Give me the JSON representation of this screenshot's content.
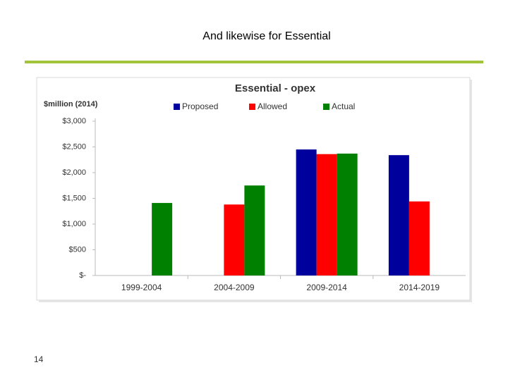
{
  "slide_title": "And likewise for Essential",
  "page_number": "14",
  "chart_data": {
    "type": "bar",
    "title": "Essential  - opex",
    "y_label": "$million (2014)",
    "categories": [
      "1999-2004",
      "2004-2009",
      "2009-2014",
      "2014-2019"
    ],
    "series": [
      {
        "name": "Proposed",
        "color": "#00009c",
        "values": [
          null,
          null,
          2450,
          2340
        ]
      },
      {
        "name": "Allowed",
        "color": "#ff0000",
        "values": [
          null,
          1380,
          2360,
          1440
        ]
      },
      {
        "name": "Actual",
        "color": "#008000",
        "values": [
          1410,
          1750,
          2370,
          null
        ]
      }
    ],
    "ylim": [
      0,
      3000
    ],
    "yticks": [
      {
        "value": 0,
        "label": "$-"
      },
      {
        "value": 500,
        "label": "$500"
      },
      {
        "value": 1000,
        "label": "$1,000"
      },
      {
        "value": 1500,
        "label": "$1,500"
      },
      {
        "value": 2000,
        "label": "$2,000"
      },
      {
        "value": 2500,
        "label": "$2,500"
      },
      {
        "value": 3000,
        "label": "$3,000"
      }
    ],
    "grid": false,
    "legend": "top"
  }
}
